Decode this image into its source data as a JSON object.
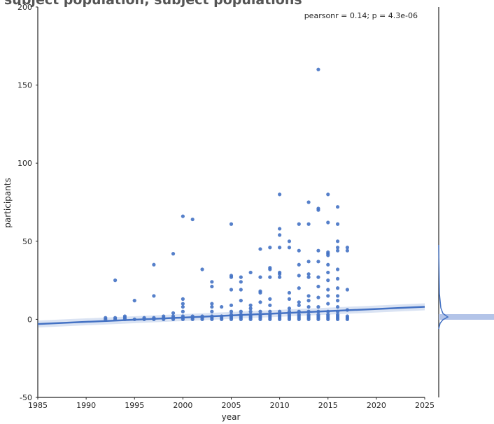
{
  "chart_data": {
    "type": "scatter",
    "title": "subject population; subject populations",
    "annotation": "pearsonr = 0.14; p = 4.3e-06",
    "x_label": "year",
    "y_label": "participants",
    "xlim": [
      1985,
      2025
    ],
    "xticks": [
      1985,
      1990,
      1995,
      2000,
      2005,
      2010,
      2015,
      2020,
      2025
    ],
    "ylim": [
      -50,
      200
    ],
    "yticks": [
      -50,
      0,
      50,
      100,
      150,
      200
    ],
    "color": "#4472c4",
    "x": [
      1992,
      1992,
      1993,
      1993,
      1993,
      1994,
      1994,
      1994,
      1995,
      1995,
      1996,
      1996,
      1997,
      1997,
      1997,
      1997,
      1998,
      1998,
      1998,
      1999,
      1999,
      1999,
      1999,
      1999,
      2000,
      2000,
      2000,
      2000,
      2000,
      2000,
      2000,
      2000,
      2001,
      2001,
      2001,
      2001,
      2002,
      2002,
      2002,
      2002,
      2003,
      2003,
      2003,
      2003,
      2003,
      2003,
      2003,
      2003,
      2004,
      2004,
      2004,
      2004,
      2005,
      2005,
      2005,
      2005,
      2005,
      2005,
      2005,
      2005,
      2005,
      2005,
      2006,
      2006,
      2006,
      2006,
      2006,
      2006,
      2006,
      2006,
      2006,
      2007,
      2007,
      2007,
      2007,
      2007,
      2007,
      2007,
      2007,
      2008,
      2008,
      2008,
      2008,
      2008,
      2008,
      2008,
      2008,
      2008,
      2008,
      2009,
      2009,
      2009,
      2009,
      2009,
      2009,
      2009,
      2009,
      2009,
      2009,
      2009,
      2010,
      2010,
      2010,
      2010,
      2010,
      2010,
      2010,
      2010,
      2010,
      2010,
      2010,
      2010,
      2011,
      2011,
      2011,
      2011,
      2011,
      2011,
      2011,
      2011,
      2011,
      2011,
      2012,
      2012,
      2012,
      2012,
      2012,
      2012,
      2012,
      2012,
      2012,
      2012,
      2012,
      2012,
      2013,
      2013,
      2013,
      2013,
      2013,
      2013,
      2013,
      2013,
      2013,
      2013,
      2013,
      2013,
      2013,
      2014,
      2014,
      2014,
      2014,
      2014,
      2014,
      2014,
      2014,
      2014,
      2014,
      2014,
      2014,
      2014,
      2014,
      2015,
      2015,
      2015,
      2015,
      2015,
      2015,
      2015,
      2015,
      2015,
      2015,
      2015,
      2015,
      2015,
      2015,
      2015,
      2015,
      2016,
      2016,
      2016,
      2016,
      2016,
      2016,
      2016,
      2016,
      2016,
      2016,
      2016,
      2016,
      2016,
      2016,
      2016,
      2016,
      2017,
      2017,
      2017,
      2017,
      2017,
      2017,
      2017
    ],
    "values": [
      0,
      1,
      25,
      0,
      1,
      0,
      1,
      2,
      12,
      0,
      0,
      1,
      35,
      15,
      0,
      1,
      0,
      1,
      2,
      42,
      4,
      0,
      1,
      2,
      66,
      13,
      10,
      8,
      5,
      0,
      1,
      2,
      64,
      0,
      1,
      2,
      32,
      0,
      1,
      2,
      24,
      21,
      10,
      8,
      5,
      0,
      1,
      2,
      8,
      0,
      1,
      2,
      61,
      28,
      27,
      19,
      9,
      5,
      3,
      0,
      1,
      2,
      27,
      24,
      19,
      12,
      5,
      3,
      0,
      1,
      2,
      30,
      9,
      7,
      5,
      3,
      0,
      1,
      2,
      45,
      27,
      18,
      17,
      11,
      5,
      3,
      0,
      1,
      2,
      46,
      33,
      32,
      27,
      13,
      9,
      5,
      3,
      0,
      1,
      2,
      80,
      58,
      54,
      46,
      30,
      29,
      27,
      5,
      3,
      0,
      1,
      2,
      50,
      46,
      17,
      13,
      7,
      5,
      3,
      0,
      1,
      2,
      61,
      44,
      35,
      28,
      20,
      11,
      9,
      5,
      3,
      0,
      1,
      2,
      75,
      61,
      37,
      29,
      27,
      15,
      12,
      8,
      5,
      3,
      0,
      1,
      2,
      160,
      71,
      70,
      44,
      37,
      27,
      21,
      14,
      8,
      5,
      3,
      0,
      1,
      2,
      80,
      62,
      43,
      42,
      41,
      35,
      30,
      25,
      19,
      15,
      10,
      5,
      3,
      0,
      1,
      2,
      72,
      61,
      50,
      46,
      44,
      32,
      26,
      20,
      15,
      12,
      8,
      5,
      3,
      0,
      1,
      2,
      46,
      44,
      19,
      6,
      2,
      1,
      0
    ],
    "fit_line": {
      "x": [
        1985,
        2025
      ],
      "values": [
        -3,
        8
      ]
    }
  }
}
